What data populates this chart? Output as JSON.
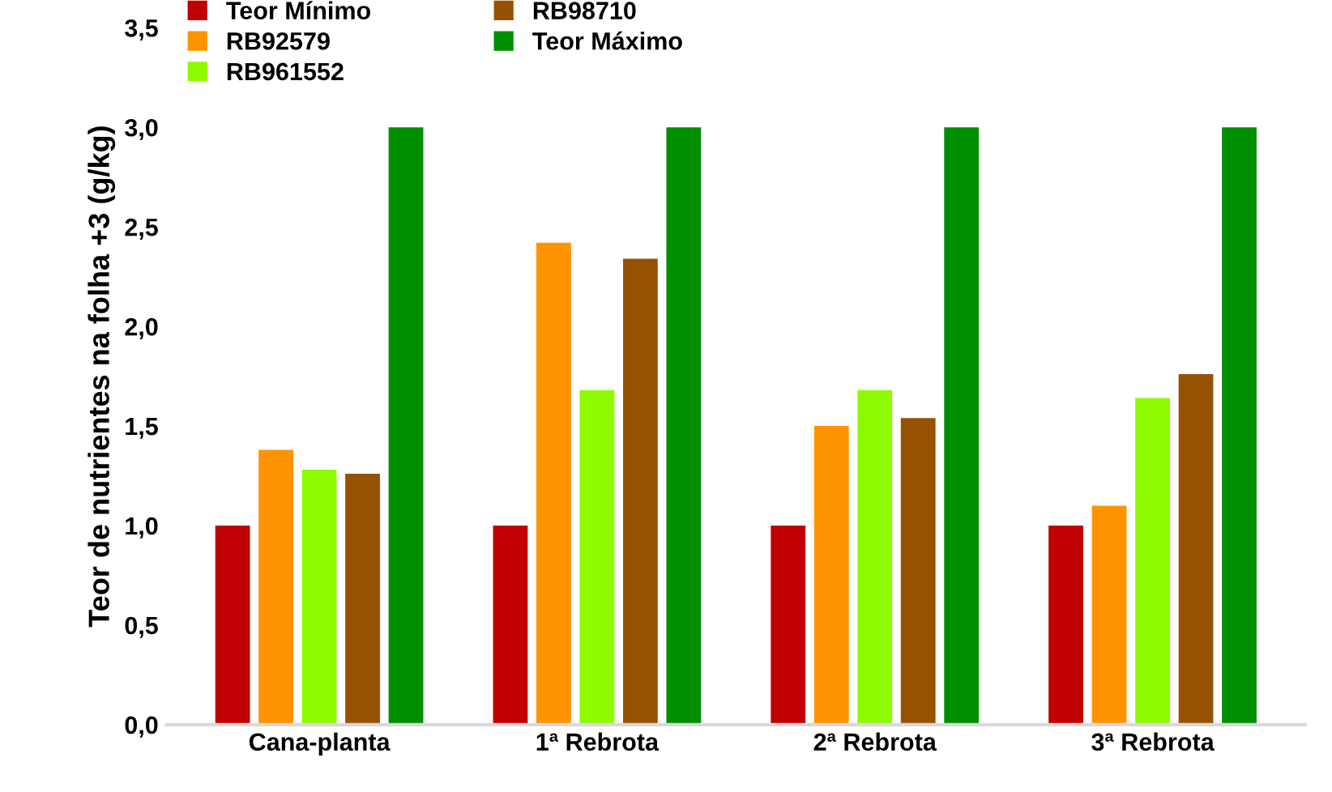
{
  "chart_data": {
    "type": "bar",
    "ylabel": "Teor de nutrientes na folha +3 (g/kg)",
    "categories": [
      "Cana-planta",
      "1ª Rebrota",
      "2ª Rebrota",
      "3ª Rebrota"
    ],
    "series": [
      {
        "name": "Teor Mínimo",
        "color": "#c00000",
        "values": [
          1.0,
          1.0,
          1.0,
          1.0
        ]
      },
      {
        "name": "RB92579",
        "color": "#ff9300",
        "values": [
          1.38,
          2.42,
          1.5,
          1.1
        ]
      },
      {
        "name": "RB961552",
        "color": "#8efa00",
        "values": [
          1.28,
          1.68,
          1.68,
          1.64
        ]
      },
      {
        "name": "RB98710",
        "color": "#965200",
        "values": [
          1.26,
          2.34,
          1.54,
          1.76
        ]
      },
      {
        "name": "Teor Máximo",
        "color": "#008f00",
        "values": [
          3.0,
          3.0,
          3.0,
          3.0
        ]
      }
    ],
    "ylim": [
      0,
      3.5
    ],
    "yticks": [
      {
        "value": 0,
        "label": "0,0"
      },
      {
        "value": 0.5,
        "label": "0,5"
      },
      {
        "value": 1.0,
        "label": "1,0"
      },
      {
        "value": 1.5,
        "label": "1,5"
      },
      {
        "value": 2.0,
        "label": "2,0"
      },
      {
        "value": 2.5,
        "label": "2,5"
      },
      {
        "value": 3.0,
        "label": "3,0"
      },
      {
        "value": 3.5,
        "label": "3,5"
      }
    ],
    "grid": false,
    "legend": "top left"
  }
}
